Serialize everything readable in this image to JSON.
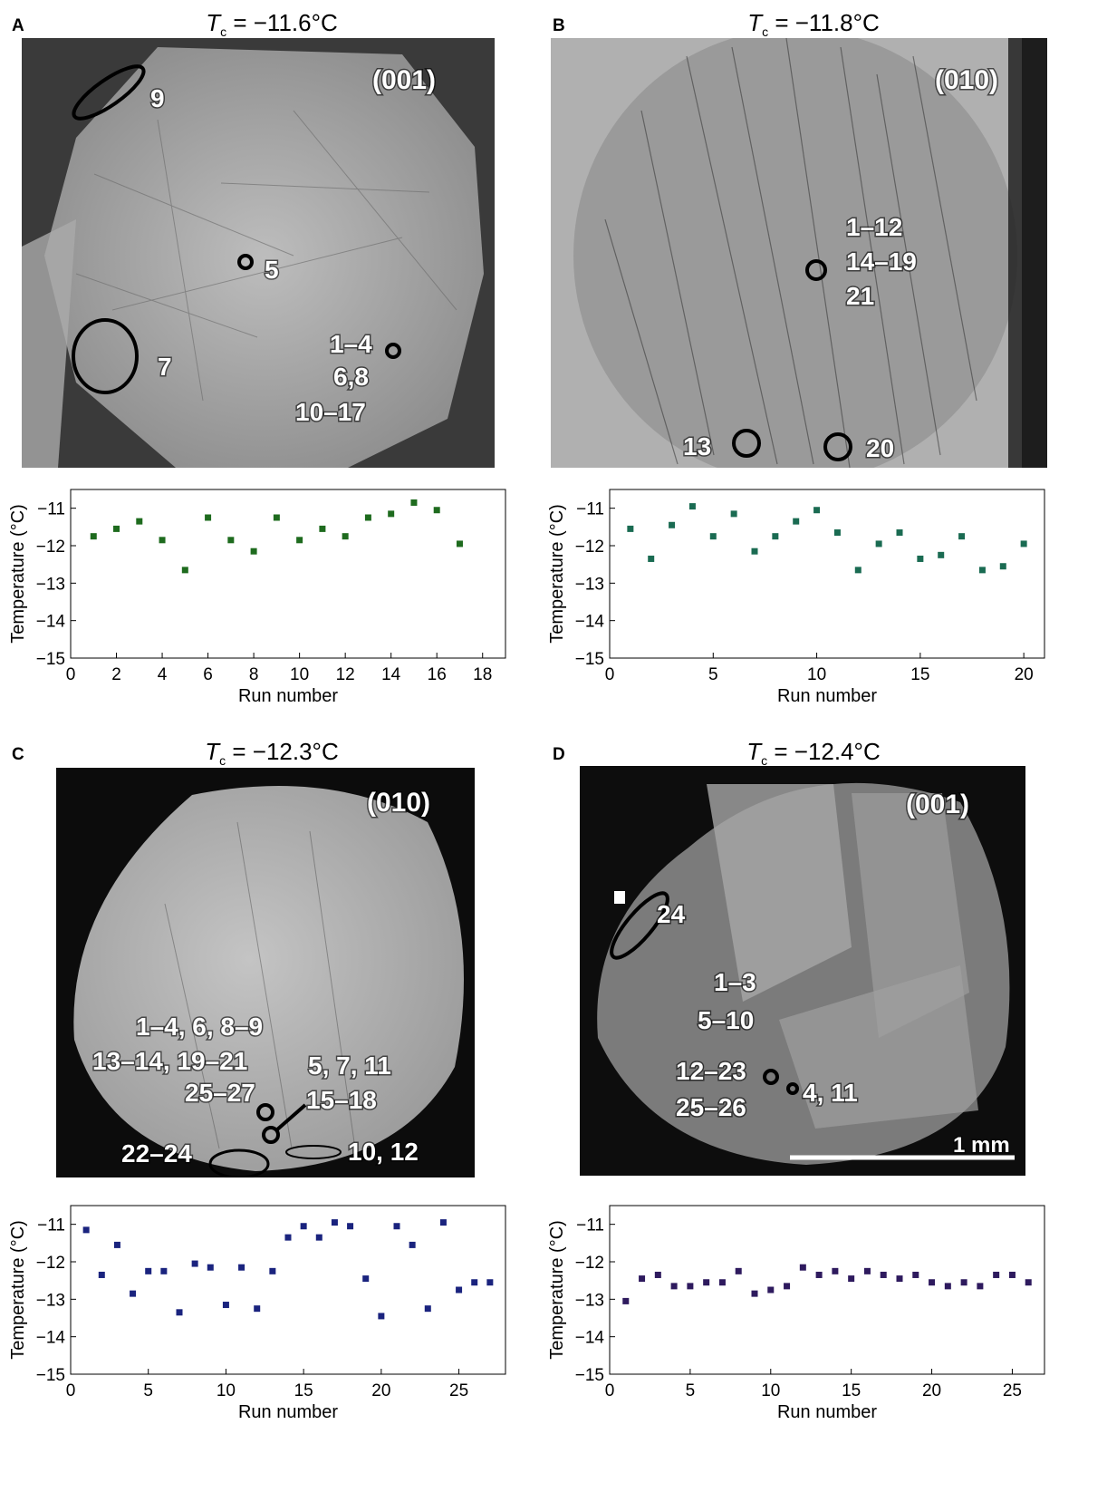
{
  "panels": [
    {
      "letter": "A",
      "tc_value": " = −11.6°C",
      "facet": "(001)",
      "labels": [
        "9",
        "5",
        "7",
        "1–4",
        "6,8",
        "10–17"
      ]
    },
    {
      "letter": "B",
      "tc_value": " = −11.8°C",
      "facet": "(010)",
      "labels": [
        "1–12",
        "14–19",
        "21",
        "13",
        "20"
      ]
    },
    {
      "letter": "C",
      "tc_value": " = −12.3°C",
      "facet": "(010)",
      "labels": [
        "1–4, 6, 8–9",
        "13–14, 19–21",
        "25–27",
        "5, 7, 11",
        "15–18",
        "22–24",
        "10, 12"
      ]
    },
    {
      "letter": "D",
      "tc_value": " = −12.4°C",
      "facet": "(001)",
      "labels": [
        "24",
        "1–3",
        "5–10",
        "12–23",
        "25–26",
        "4, 11"
      ],
      "scale_bar": "1 mm"
    }
  ],
  "tc_symbol": "T",
  "tc_sub": "c",
  "chart_data": [
    {
      "type": "scatter",
      "panel": "A",
      "xlabel": "Run number",
      "ylabel": "Temperature (°C)",
      "xlim": [
        0,
        19
      ],
      "ylim": [
        -15,
        -10.5
      ],
      "xticks": [
        0,
        2,
        4,
        6,
        8,
        10,
        12,
        14,
        16,
        18
      ],
      "yticks": [
        -11,
        -12,
        -13,
        -14,
        -15
      ],
      "color": "#1e6b1e",
      "x": [
        1,
        2,
        3,
        4,
        5,
        6,
        7,
        8,
        9,
        10,
        11,
        12,
        13,
        14,
        15,
        16,
        17
      ],
      "y": [
        -11.75,
        -11.55,
        -11.35,
        -11.85,
        -12.65,
        -11.25,
        -11.85,
        -12.15,
        -11.25,
        -11.85,
        -11.55,
        -11.75,
        -11.25,
        -11.15,
        -10.85,
        -11.05,
        -11.95
      ]
    },
    {
      "type": "scatter",
      "panel": "B",
      "xlabel": "Run number",
      "ylabel": "Temperature (°C)",
      "xlim": [
        0,
        21
      ],
      "ylim": [
        -15,
        -10.5
      ],
      "xticks": [
        0,
        5,
        10,
        15,
        20
      ],
      "yticks": [
        -11,
        -12,
        -13,
        -14,
        -15
      ],
      "color": "#1a6b52",
      "x": [
        1,
        2,
        3,
        4,
        5,
        6,
        7,
        8,
        9,
        10,
        11,
        12,
        13,
        14,
        15,
        16,
        17,
        18,
        19,
        20
      ],
      "y": [
        -11.55,
        -12.35,
        -11.45,
        -10.95,
        -11.75,
        -11.15,
        -12.15,
        -11.75,
        -11.35,
        -11.05,
        -11.65,
        -12.65,
        -11.95,
        -11.65,
        -12.35,
        -12.25,
        -11.75,
        -12.65,
        -12.55,
        -11.95
      ]
    },
    {
      "type": "scatter",
      "panel": "C",
      "xlabel": "Run number",
      "ylabel": "Temperature (°C)",
      "xlim": [
        0,
        28
      ],
      "ylim": [
        -15,
        -10.5
      ],
      "xticks": [
        0,
        5,
        10,
        15,
        20,
        25
      ],
      "yticks": [
        -11,
        -12,
        -13,
        -14,
        -15
      ],
      "color": "#1a237e",
      "x": [
        1,
        2,
        3,
        4,
        5,
        6,
        7,
        8,
        9,
        10,
        11,
        12,
        13,
        14,
        15,
        16,
        17,
        18,
        19,
        20,
        21,
        22,
        23,
        24,
        25,
        26,
        27
      ],
      "y": [
        -11.15,
        -12.35,
        -11.55,
        -12.85,
        -12.25,
        -12.25,
        -13.35,
        -12.05,
        -12.15,
        -13.15,
        -12.15,
        -13.25,
        -12.25,
        -11.35,
        -11.05,
        -11.35,
        -10.95,
        -11.05,
        -12.45,
        -13.45,
        -11.05,
        -11.55,
        -13.25,
        -10.95,
        -12.75,
        -12.55,
        -12.55
      ]
    },
    {
      "type": "scatter",
      "panel": "D",
      "xlabel": "Run number",
      "ylabel": "Temperature (°C)",
      "xlim": [
        0,
        27
      ],
      "ylim": [
        -15,
        -10.5
      ],
      "xticks": [
        0,
        5,
        10,
        15,
        20,
        25
      ],
      "yticks": [
        -11,
        -12,
        -13,
        -14,
        -15
      ],
      "color": "#2e1a5e",
      "x": [
        1,
        2,
        3,
        4,
        5,
        6,
        7,
        8,
        9,
        10,
        11,
        12,
        13,
        14,
        15,
        16,
        17,
        18,
        19,
        20,
        21,
        22,
        23,
        24,
        25,
        26
      ],
      "y": [
        -13.05,
        -12.45,
        -12.35,
        -12.65,
        -12.65,
        -12.55,
        -12.55,
        -12.25,
        -12.85,
        -12.75,
        -12.65,
        -12.15,
        -12.35,
        -12.25,
        -12.45,
        -12.25,
        -12.35,
        -12.45,
        -12.35,
        -12.55,
        -12.65,
        -12.55,
        -12.65,
        -12.35,
        -12.35,
        -12.55
      ]
    }
  ]
}
